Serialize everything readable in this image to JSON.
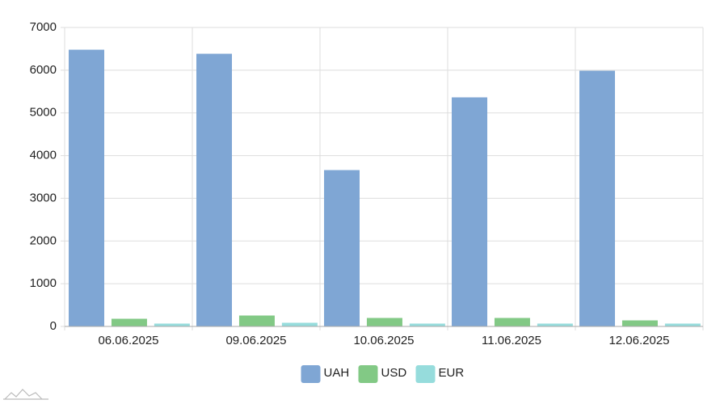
{
  "chart_data": {
    "type": "bar",
    "categories": [
      "06.06.2025",
      "09.06.2025",
      "10.06.2025",
      "11.06.2025",
      "12.06.2025"
    ],
    "series": [
      {
        "name": "UAH",
        "color": "#7fa6d4",
        "values": [
          6470,
          6375,
          3651,
          5354,
          5978
        ]
      },
      {
        "name": "USD",
        "color": "#82c985",
        "values": [
          170,
          246,
          189,
          189,
          132
        ]
      },
      {
        "name": "EUR",
        "color": "#96dcdc",
        "values": [
          57,
          76,
          57,
          57,
          57
        ]
      }
    ],
    "ylim": [
      0,
      7000
    ],
    "yticks": [
      0,
      1000,
      2000,
      3000,
      4000,
      5000,
      6000,
      7000
    ],
    "grid": true,
    "legend": "bottom"
  }
}
